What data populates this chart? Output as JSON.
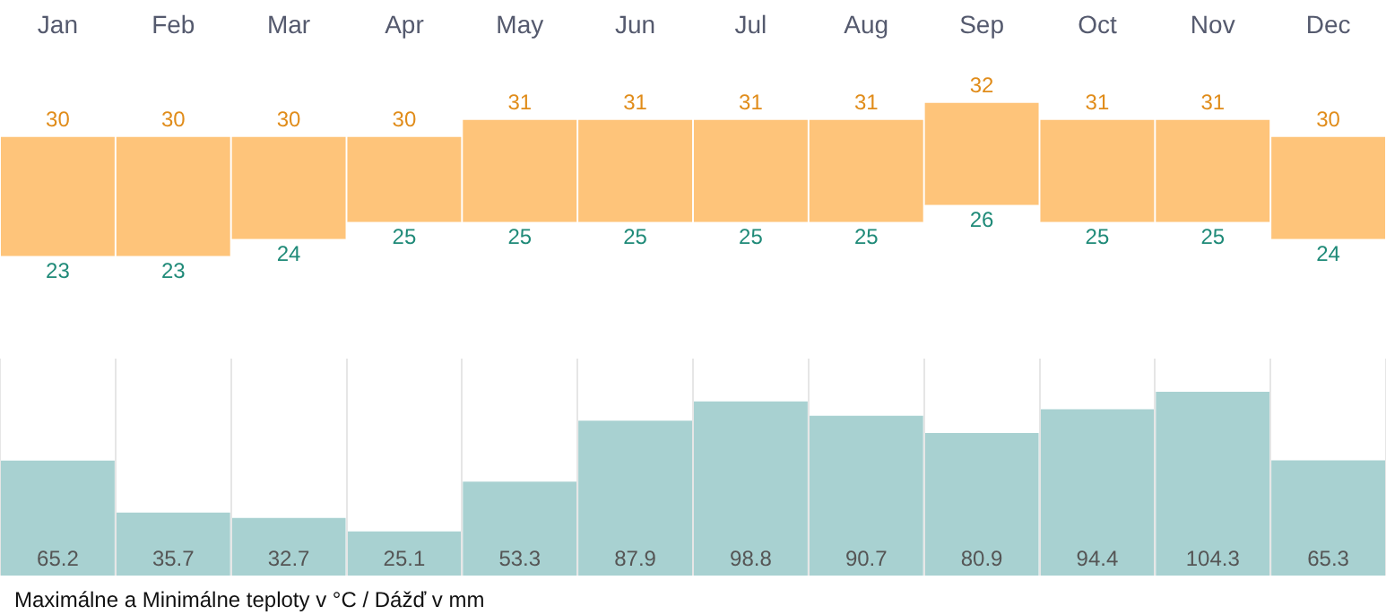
{
  "chart_data": [
    {
      "type": "bar",
      "categories": [
        "Jan",
        "Feb",
        "Mar",
        "Apr",
        "May",
        "Jun",
        "Jul",
        "Aug",
        "Sep",
        "Oct",
        "Nov",
        "Dec"
      ],
      "stacked": true,
      "series": [
        {
          "color": "#ffffff",
          "values": [
            23,
            23,
            24,
            25,
            25,
            25,
            25,
            25,
            26,
            25,
            25,
            24
          ],
          "value_labels": [
            "23",
            "23",
            "24",
            "25",
            "25",
            "25",
            "25",
            "25",
            "26",
            "25",
            "25",
            "24"
          ]
        },
        {
          "color": "#fec47a",
          "values": [
            7,
            7,
            6,
            5,
            6,
            6,
            6,
            6,
            6,
            6,
            6,
            6
          ]
        }
      ],
      "totals": [
        "30",
        "30",
        "30",
        "30",
        "31",
        "31",
        "31",
        "31",
        "32",
        "31",
        "31",
        "30"
      ]
    },
    {
      "type": "bar",
      "categories": [
        null,
        null,
        null,
        null,
        null,
        null,
        null,
        null,
        null,
        null,
        null,
        null
      ],
      "values": [
        65.2,
        35.7,
        32.7,
        25.1,
        53.3,
        87.9,
        98.8,
        90.7,
        80.9,
        94.4,
        104.3,
        65.3
      ],
      "color": "#a8d1d1",
      "grid": "x",
      "data_labels": true,
      "annotations": [
        "Maximálne a Minimálne teploty v °C / Dážď v mm"
      ]
    }
  ]
}
